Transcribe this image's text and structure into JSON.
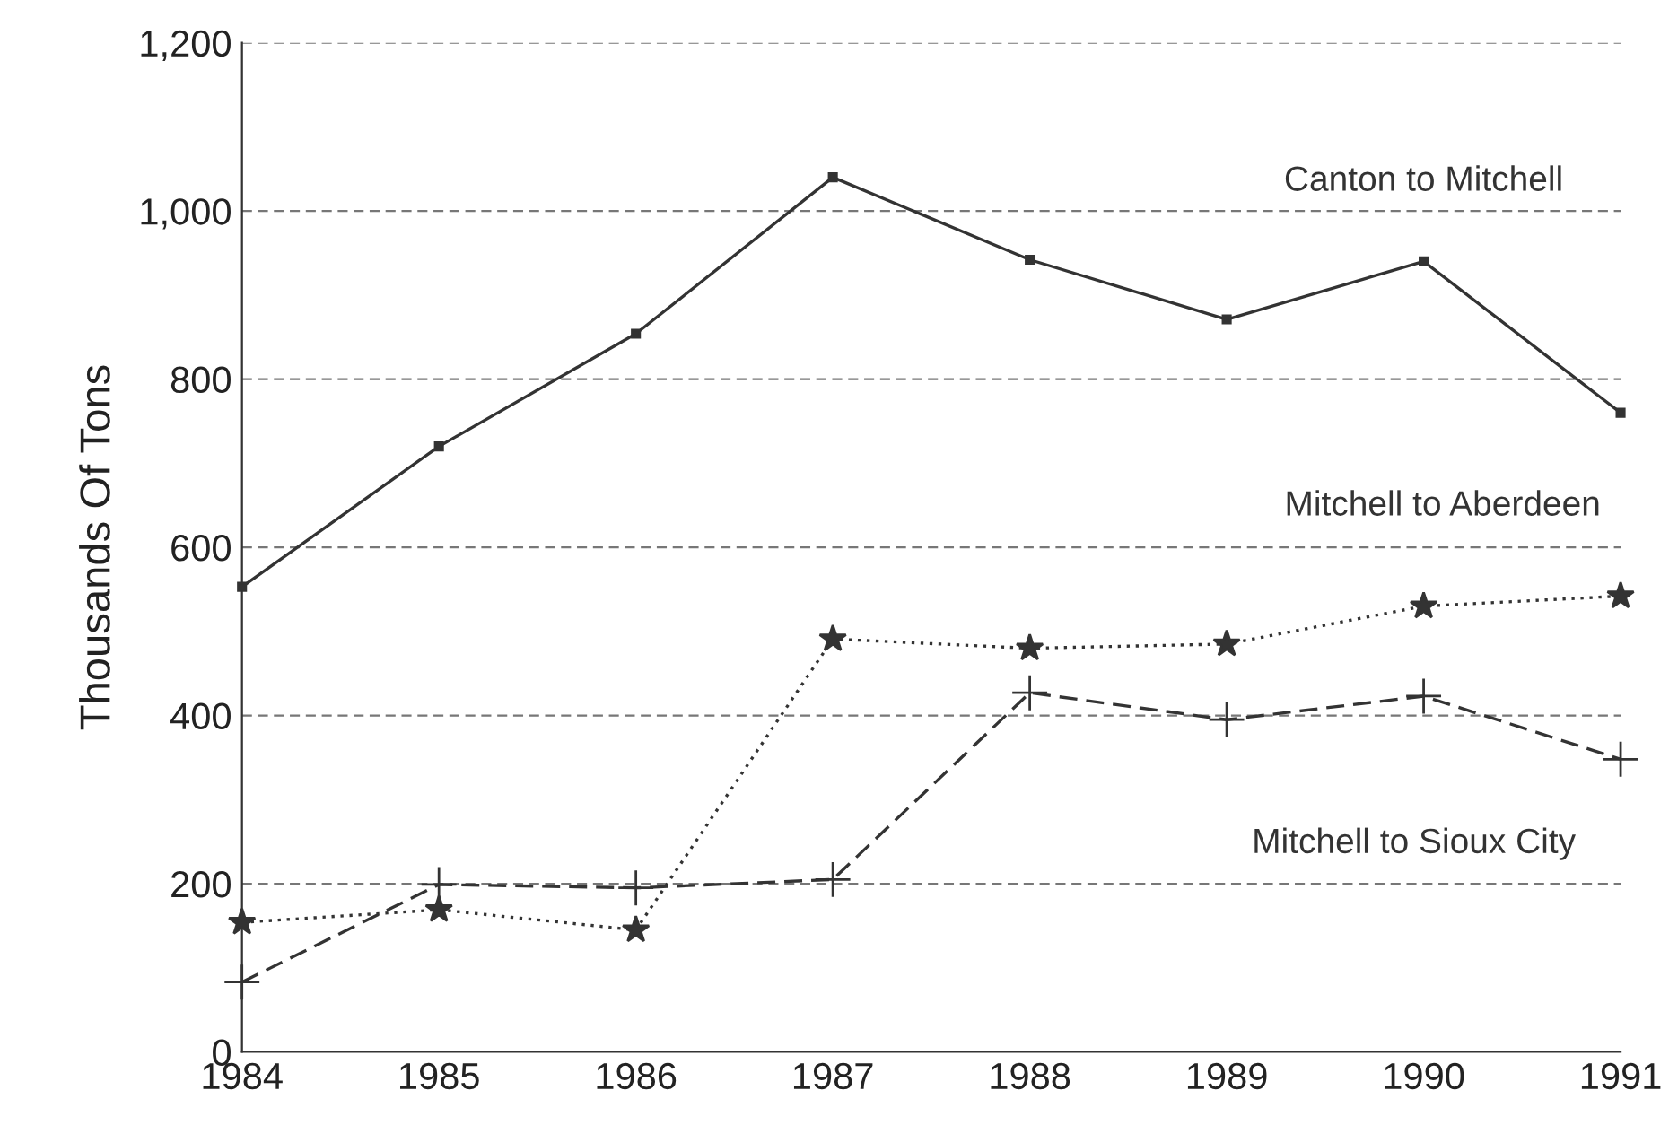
{
  "chart_data": {
    "type": "line",
    "ylabel": "Thousands Of Tons",
    "x": [
      1984,
      1985,
      1986,
      1987,
      1988,
      1989,
      1990,
      1991
    ],
    "series": [
      {
        "name": "Canton to Mitchell",
        "color": "#333333",
        "marker": "square",
        "line_style": "solid",
        "values": [
          553,
          720,
          854,
          1040,
          942,
          871,
          940,
          760
        ]
      },
      {
        "name": "Mitchell to Aberdeen",
        "color": "#333333",
        "marker": "star",
        "line_style": "dotted",
        "values": [
          154,
          169,
          145,
          491,
          480,
          485,
          530,
          542
        ]
      },
      {
        "name": "Mitchell to Sioux City",
        "color": "#333333",
        "marker": "cross",
        "line_style": "dashed",
        "values": [
          83,
          199,
          195,
          205,
          427,
          395,
          423,
          348
        ]
      }
    ],
    "xlim": [
      1984,
      1991
    ],
    "xticks": [
      1984,
      1985,
      1986,
      1987,
      1988,
      1989,
      1990,
      1991
    ],
    "ylim": [
      0,
      1200
    ],
    "yticks": [
      0,
      200,
      400,
      600,
      800,
      {
        "value": 1000,
        "label": "1,000"
      },
      {
        "value": 1200,
        "label": "1,200"
      }
    ],
    "grid": "y",
    "legend": false
  }
}
